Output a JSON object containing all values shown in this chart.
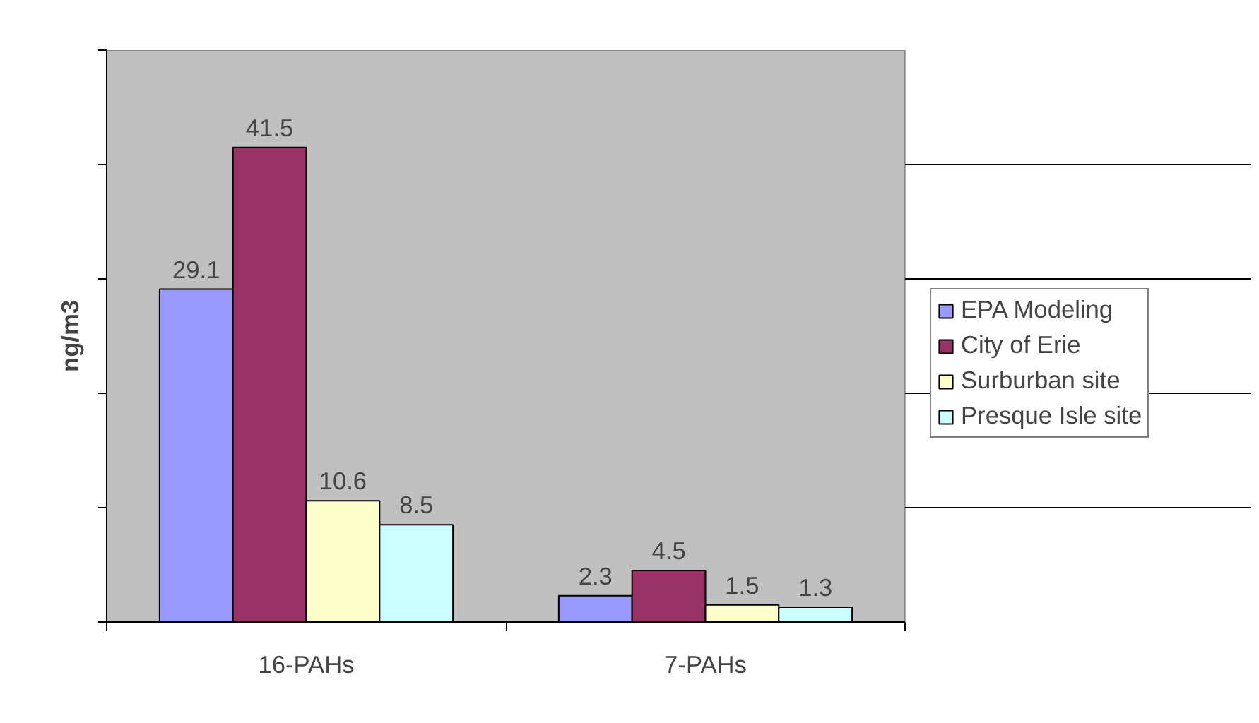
{
  "chart_data": {
    "type": "bar",
    "ylabel": "ng/m3",
    "categories": [
      "16-PAHs",
      "7-PAHs"
    ],
    "series": [
      {
        "name": "EPA Modeling",
        "color": "#9999ff",
        "values": [
          29.1,
          2.3
        ]
      },
      {
        "name": "City of Erie",
        "color": "#993366",
        "values": [
          41.5,
          4.5
        ]
      },
      {
        "name": "Surburban site",
        "color": "#ffffcc",
        "values": [
          10.6,
          1.5
        ]
      },
      {
        "name": "Presque Isle site",
        "color": "#ccffff",
        "values": [
          8.5,
          1.3
        ]
      }
    ],
    "ylim": [
      0,
      50
    ],
    "yticks": [
      {
        "value": 0,
        "label": null
      },
      {
        "value": 10,
        "label": null
      },
      {
        "value": 20,
        "label": null
      },
      {
        "value": 30,
        "label": null
      },
      {
        "value": 40,
        "label": null
      },
      {
        "value": 50,
        "label": null
      }
    ],
    "tick_labels": "x",
    "grid": "y",
    "legend": "right",
    "data_labels": true
  }
}
